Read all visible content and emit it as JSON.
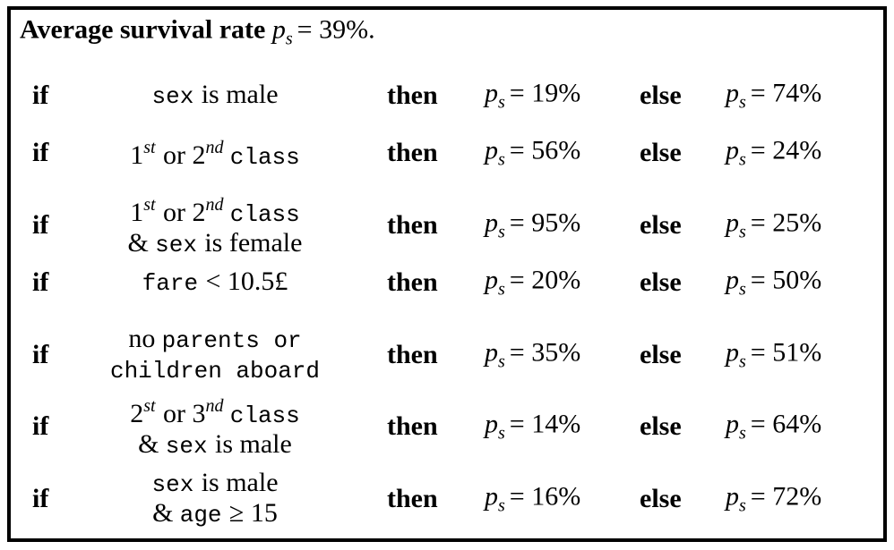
{
  "title": {
    "label": "Average survival rate",
    "value": "= 39%."
  },
  "symbol": "p",
  "subscript": "s",
  "keywords": {
    "if": "if",
    "then": "then",
    "else": "else"
  },
  "rows": [
    {
      "condition": [
        [
          "sex",
          "is male"
        ]
      ],
      "then_value": "= 19%",
      "else_value": "= 74%"
    },
    {
      "condition": [
        [
          "1",
          "st",
          "or 2",
          "nd",
          "class"
        ]
      ],
      "then_value": "= 56%",
      "else_value": "= 24%"
    },
    {
      "condition": [
        [
          "1",
          "st",
          "or 2",
          "nd",
          "class"
        ],
        [
          "&",
          "sex",
          "is female"
        ]
      ],
      "then_value": "= 95%",
      "else_value": "= 25%"
    },
    {
      "condition": [
        [
          "fare",
          "< 10.5£"
        ]
      ],
      "then_value": "= 20%",
      "else_value": "= 50%"
    },
    {
      "condition": [
        [
          "no",
          "parents or"
        ],
        [
          "children aboard"
        ]
      ],
      "then_value": "= 35%",
      "else_value": "= 51%"
    },
    {
      "condition": [
        [
          "2",
          "st",
          "or 3",
          "nd",
          "class"
        ],
        [
          "&",
          "sex",
          "is male"
        ]
      ],
      "then_value": "= 14%",
      "else_value": "= 64%"
    },
    {
      "condition": [
        [
          "sex",
          "is male"
        ],
        [
          "&",
          "age",
          "≥ 15"
        ]
      ],
      "then_value": "= 16%",
      "else_value": "= 72%"
    }
  ]
}
